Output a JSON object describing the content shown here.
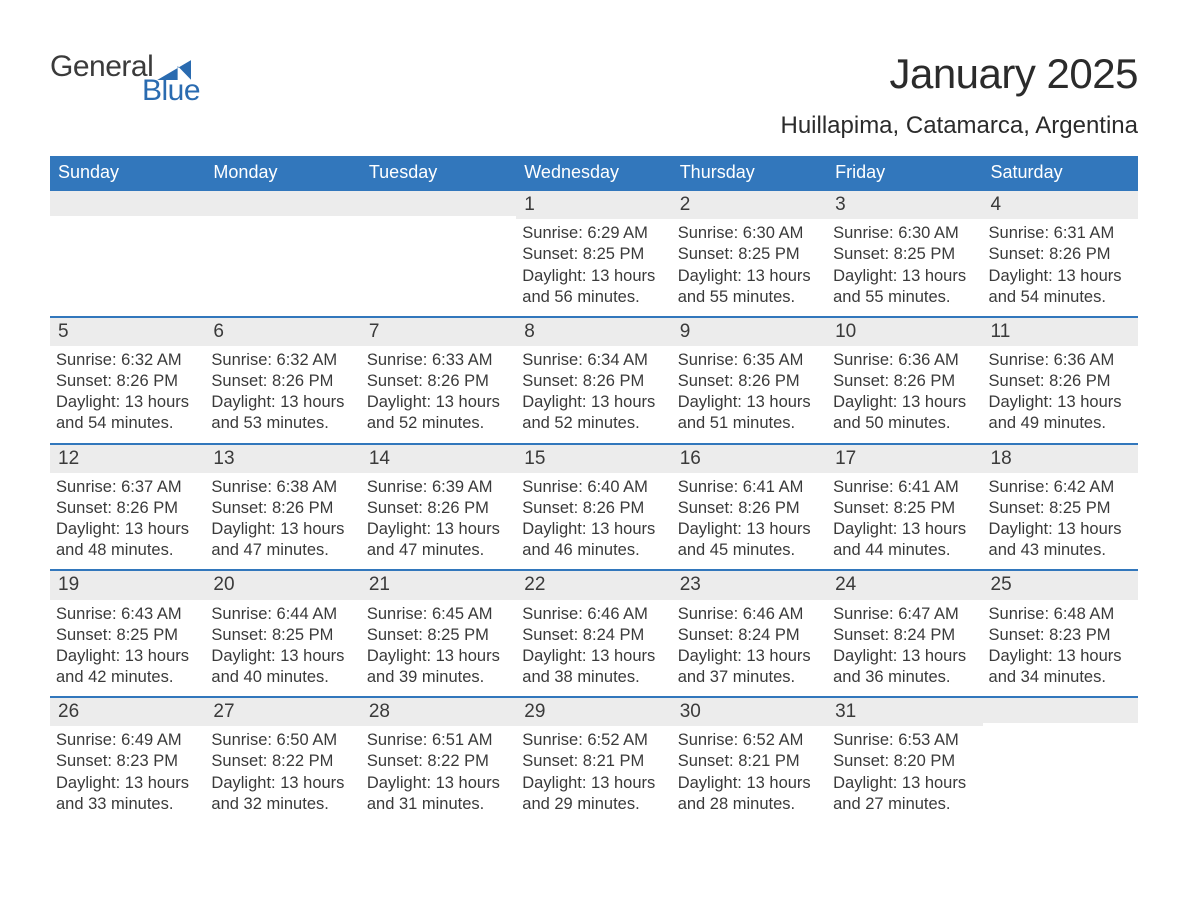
{
  "brand": {
    "general": "General",
    "blue": "Blue"
  },
  "title": "January 2025",
  "subtitle": "Huillapima, Catamarca, Argentina",
  "style": {
    "header_bg": "#3277bc",
    "header_fg": "#ffffff",
    "daynum_bg": "#ececec",
    "week_border": "#3277bc",
    "body_text": "#3a3a3a",
    "background": "#ffffff",
    "title_fontsize": 42,
    "subtitle_fontsize": 24,
    "header_fontsize": 18,
    "cell_fontsize": 16.5,
    "daynum_fontsize": 19
  },
  "day_headers": [
    "Sunday",
    "Monday",
    "Tuesday",
    "Wednesday",
    "Thursday",
    "Friday",
    "Saturday"
  ],
  "weeks": [
    [
      {
        "day": "",
        "lines": []
      },
      {
        "day": "",
        "lines": []
      },
      {
        "day": "",
        "lines": []
      },
      {
        "day": "1",
        "lines": [
          "Sunrise: 6:29 AM",
          "Sunset: 8:25 PM",
          "Daylight: 13 hours and 56 minutes."
        ]
      },
      {
        "day": "2",
        "lines": [
          "Sunrise: 6:30 AM",
          "Sunset: 8:25 PM",
          "Daylight: 13 hours and 55 minutes."
        ]
      },
      {
        "day": "3",
        "lines": [
          "Sunrise: 6:30 AM",
          "Sunset: 8:25 PM",
          "Daylight: 13 hours and 55 minutes."
        ]
      },
      {
        "day": "4",
        "lines": [
          "Sunrise: 6:31 AM",
          "Sunset: 8:26 PM",
          "Daylight: 13 hours and 54 minutes."
        ]
      }
    ],
    [
      {
        "day": "5",
        "lines": [
          "Sunrise: 6:32 AM",
          "Sunset: 8:26 PM",
          "Daylight: 13 hours and 54 minutes."
        ]
      },
      {
        "day": "6",
        "lines": [
          "Sunrise: 6:32 AM",
          "Sunset: 8:26 PM",
          "Daylight: 13 hours and 53 minutes."
        ]
      },
      {
        "day": "7",
        "lines": [
          "Sunrise: 6:33 AM",
          "Sunset: 8:26 PM",
          "Daylight: 13 hours and 52 minutes."
        ]
      },
      {
        "day": "8",
        "lines": [
          "Sunrise: 6:34 AM",
          "Sunset: 8:26 PM",
          "Daylight: 13 hours and 52 minutes."
        ]
      },
      {
        "day": "9",
        "lines": [
          "Sunrise: 6:35 AM",
          "Sunset: 8:26 PM",
          "Daylight: 13 hours and 51 minutes."
        ]
      },
      {
        "day": "10",
        "lines": [
          "Sunrise: 6:36 AM",
          "Sunset: 8:26 PM",
          "Daylight: 13 hours and 50 minutes."
        ]
      },
      {
        "day": "11",
        "lines": [
          "Sunrise: 6:36 AM",
          "Sunset: 8:26 PM",
          "Daylight: 13 hours and 49 minutes."
        ]
      }
    ],
    [
      {
        "day": "12",
        "lines": [
          "Sunrise: 6:37 AM",
          "Sunset: 8:26 PM",
          "Daylight: 13 hours and 48 minutes."
        ]
      },
      {
        "day": "13",
        "lines": [
          "Sunrise: 6:38 AM",
          "Sunset: 8:26 PM",
          "Daylight: 13 hours and 47 minutes."
        ]
      },
      {
        "day": "14",
        "lines": [
          "Sunrise: 6:39 AM",
          "Sunset: 8:26 PM",
          "Daylight: 13 hours and 47 minutes."
        ]
      },
      {
        "day": "15",
        "lines": [
          "Sunrise: 6:40 AM",
          "Sunset: 8:26 PM",
          "Daylight: 13 hours and 46 minutes."
        ]
      },
      {
        "day": "16",
        "lines": [
          "Sunrise: 6:41 AM",
          "Sunset: 8:26 PM",
          "Daylight: 13 hours and 45 minutes."
        ]
      },
      {
        "day": "17",
        "lines": [
          "Sunrise: 6:41 AM",
          "Sunset: 8:25 PM",
          "Daylight: 13 hours and 44 minutes."
        ]
      },
      {
        "day": "18",
        "lines": [
          "Sunrise: 6:42 AM",
          "Sunset: 8:25 PM",
          "Daylight: 13 hours and 43 minutes."
        ]
      }
    ],
    [
      {
        "day": "19",
        "lines": [
          "Sunrise: 6:43 AM",
          "Sunset: 8:25 PM",
          "Daylight: 13 hours and 42 minutes."
        ]
      },
      {
        "day": "20",
        "lines": [
          "Sunrise: 6:44 AM",
          "Sunset: 8:25 PM",
          "Daylight: 13 hours and 40 minutes."
        ]
      },
      {
        "day": "21",
        "lines": [
          "Sunrise: 6:45 AM",
          "Sunset: 8:25 PM",
          "Daylight: 13 hours and 39 minutes."
        ]
      },
      {
        "day": "22",
        "lines": [
          "Sunrise: 6:46 AM",
          "Sunset: 8:24 PM",
          "Daylight: 13 hours and 38 minutes."
        ]
      },
      {
        "day": "23",
        "lines": [
          "Sunrise: 6:46 AM",
          "Sunset: 8:24 PM",
          "Daylight: 13 hours and 37 minutes."
        ]
      },
      {
        "day": "24",
        "lines": [
          "Sunrise: 6:47 AM",
          "Sunset: 8:24 PM",
          "Daylight: 13 hours and 36 minutes."
        ]
      },
      {
        "day": "25",
        "lines": [
          "Sunrise: 6:48 AM",
          "Sunset: 8:23 PM",
          "Daylight: 13 hours and 34 minutes."
        ]
      }
    ],
    [
      {
        "day": "26",
        "lines": [
          "Sunrise: 6:49 AM",
          "Sunset: 8:23 PM",
          "Daylight: 13 hours and 33 minutes."
        ]
      },
      {
        "day": "27",
        "lines": [
          "Sunrise: 6:50 AM",
          "Sunset: 8:22 PM",
          "Daylight: 13 hours and 32 minutes."
        ]
      },
      {
        "day": "28",
        "lines": [
          "Sunrise: 6:51 AM",
          "Sunset: 8:22 PM",
          "Daylight: 13 hours and 31 minutes."
        ]
      },
      {
        "day": "29",
        "lines": [
          "Sunrise: 6:52 AM",
          "Sunset: 8:21 PM",
          "Daylight: 13 hours and 29 minutes."
        ]
      },
      {
        "day": "30",
        "lines": [
          "Sunrise: 6:52 AM",
          "Sunset: 8:21 PM",
          "Daylight: 13 hours and 28 minutes."
        ]
      },
      {
        "day": "31",
        "lines": [
          "Sunrise: 6:53 AM",
          "Sunset: 8:20 PM",
          "Daylight: 13 hours and 27 minutes."
        ]
      },
      {
        "day": "",
        "lines": []
      }
    ]
  ]
}
